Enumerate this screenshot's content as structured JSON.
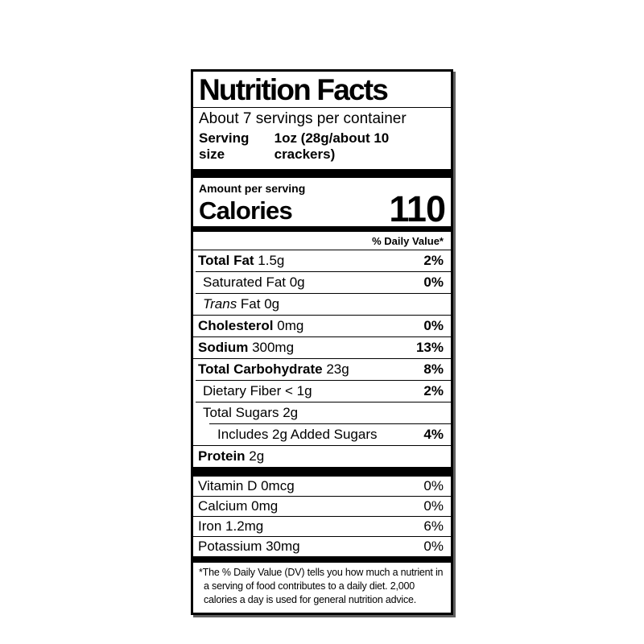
{
  "label": {
    "title": "Nutrition Facts",
    "servings_per_container": "About 7 servings per container",
    "serving_size_label": "Serving size",
    "serving_size_value": "1oz (28g/about 10 crackers)",
    "amount_per_serving": "Amount per serving",
    "calories_label": "Calories",
    "calories_value": "110",
    "daily_value_header": "% Daily Value*",
    "nutrients": [
      {
        "bold": "Total Fat",
        "text": " 1.5g",
        "dv": "2%"
      },
      {
        "text": "Saturated Fat 0g",
        "dv": "0%"
      },
      {
        "italic": "Trans",
        "text": " Fat 0g",
        "dv": ""
      },
      {
        "bold": "Cholesterol",
        "text": " 0mg",
        "dv": "0%"
      },
      {
        "bold": "Sodium",
        "text": " 300mg",
        "dv": "13%"
      },
      {
        "bold": "Total Carbohydrate",
        "text": " 23g",
        "dv": "8%"
      },
      {
        "text": "Dietary Fiber < 1g",
        "dv": "2%"
      },
      {
        "text": "Total Sugars 2g",
        "dv": ""
      },
      {
        "text": "Includes 2g Added Sugars",
        "dv": "4%"
      },
      {
        "bold": "Protein",
        "text": " 2g",
        "dv": ""
      }
    ],
    "micronutrients": [
      {
        "text": "Vitamin D 0mcg",
        "dv": "0%"
      },
      {
        "text": "Calcium 0mg",
        "dv": "0%"
      },
      {
        "text": "Iron 1.2mg",
        "dv": "6%"
      },
      {
        "text": "Potassium 30mg",
        "dv": "0%"
      }
    ],
    "footnote": "*The % Daily Value (DV) tells you how much a nutrient in a serving of food contributes to a daily diet. 2,000 calories a day is used for general nutrition advice.",
    "colors": {
      "ink": "#000000",
      "background": "#ffffff",
      "shadow": "#5f5f5f"
    }
  }
}
